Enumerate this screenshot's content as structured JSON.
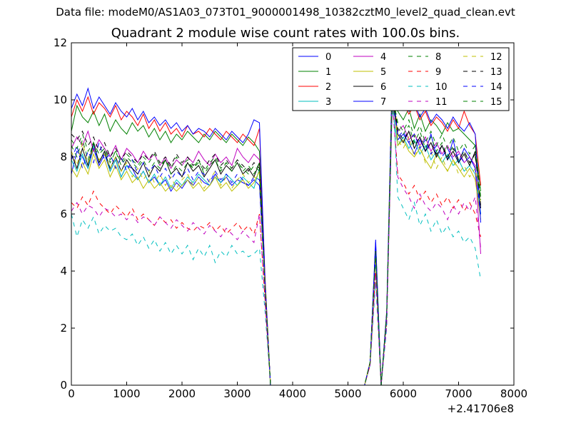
{
  "suptitle": "Data file: modeM0/AS1A03_073T01_9000001498_10382cztM0_level2_quad_clean.evt",
  "chart_data": {
    "type": "line",
    "title": "Quadrant 2 module wise count rates with 100.0s bins.",
    "xlabel": "",
    "ylabel": "",
    "xlim": [
      0,
      8000
    ],
    "ylim": [
      0,
      12
    ],
    "x_offset_label": "+2.41706e8",
    "xticks": [
      0,
      1000,
      2000,
      3000,
      4000,
      5000,
      6000,
      7000,
      8000
    ],
    "yticks": [
      0,
      2,
      4,
      6,
      8,
      10,
      12
    ],
    "grid": false,
    "legend_position": "top-right",
    "legend_columns": 4,
    "x": [
      0,
      100,
      200,
      300,
      400,
      500,
      600,
      700,
      800,
      900,
      1000,
      1100,
      1200,
      1300,
      1400,
      1500,
      1600,
      1700,
      1800,
      1900,
      2000,
      2100,
      2200,
      2300,
      2400,
      2500,
      2600,
      2700,
      2800,
      2900,
      3000,
      3100,
      3200,
      3300,
      3400,
      3500,
      3600,
      5300,
      5400,
      5500,
      5600,
      5700,
      5800,
      5900,
      6000,
      6100,
      6200,
      6300,
      6400,
      6500,
      6600,
      6700,
      6800,
      6900,
      7000,
      7100,
      7200,
      7300,
      7400
    ],
    "series": [
      {
        "name": "0",
        "color": "#0000ff",
        "style": "solid",
        "values": [
          7.4,
          8.2,
          8.0,
          7.6,
          8.3,
          7.7,
          8.1,
          7.5,
          7.9,
          7.3,
          7.7,
          7.6,
          7.2,
          7.5,
          7.1,
          7.3,
          7.0,
          7.2,
          6.8,
          7.1,
          6.9,
          7.2,
          7.0,
          7.3,
          7.1,
          7.0,
          7.4,
          7.1,
          7.3,
          7.0,
          7.2,
          7.1,
          7.0,
          7.2,
          7.0,
          3.5,
          0.0,
          0.0,
          0.8,
          5.1,
          0.0,
          2.5,
          10.2,
          8.6,
          8.8,
          8.5,
          8.1,
          8.6,
          8.2,
          8.8,
          8.0,
          8.4,
          7.9,
          8.6,
          7.8,
          8.3,
          8.0,
          7.6,
          6.0
        ]
      },
      {
        "name": "1",
        "color": "#008000",
        "style": "solid",
        "values": [
          8.9,
          9.8,
          9.4,
          9.2,
          9.6,
          9.1,
          9.5,
          8.9,
          9.3,
          9.0,
          8.8,
          9.2,
          8.9,
          9.1,
          8.7,
          9.0,
          8.6,
          8.9,
          8.5,
          8.8,
          8.6,
          8.9,
          8.7,
          8.5,
          8.8,
          8.6,
          8.9,
          8.7,
          8.5,
          8.8,
          8.6,
          8.4,
          8.7,
          8.5,
          8.2,
          3.6,
          0.0,
          0.0,
          0.8,
          4.6,
          0.0,
          2.5,
          10.0,
          9.6,
          9.3,
          9.7,
          9.0,
          9.5,
          8.9,
          9.3,
          9.1,
          8.8,
          9.2,
          8.9,
          9.0,
          8.8,
          8.6,
          8.4,
          6.8
        ]
      },
      {
        "name": "2",
        "color": "#ff0000",
        "style": "solid",
        "values": [
          9.4,
          10.0,
          9.6,
          10.1,
          9.5,
          9.9,
          9.7,
          9.4,
          9.8,
          9.3,
          9.6,
          9.4,
          9.1,
          9.5,
          9.0,
          9.3,
          8.9,
          9.2,
          8.8,
          9.0,
          8.7,
          9.1,
          8.8,
          8.9,
          8.7,
          9.0,
          8.8,
          8.6,
          8.9,
          8.7,
          8.5,
          8.8,
          8.6,
          8.4,
          9.0,
          3.8,
          0.0,
          0.0,
          0.8,
          4.9,
          0.0,
          2.6,
          10.4,
          9.7,
          9.9,
          9.5,
          9.8,
          9.3,
          9.6,
          9.1,
          9.4,
          9.2,
          8.9,
          9.3,
          9.0,
          9.6,
          9.1,
          8.8,
          7.0
        ]
      },
      {
        "name": "3",
        "color": "#00bfbf",
        "style": "solid",
        "values": [
          7.9,
          7.5,
          8.1,
          7.6,
          8.4,
          7.8,
          8.2,
          7.5,
          7.9,
          7.3,
          7.7,
          7.4,
          7.2,
          7.5,
          7.1,
          7.4,
          7.0,
          7.3,
          6.9,
          7.2,
          7.0,
          7.3,
          7.1,
          7.4,
          7.2,
          7.0,
          7.3,
          7.1,
          7.4,
          7.2,
          7.0,
          7.3,
          7.1,
          6.9,
          7.6,
          3.4,
          0.0,
          0.0,
          0.8,
          4.4,
          0.0,
          2.4,
          9.7,
          8.4,
          8.7,
          8.3,
          8.6,
          8.1,
          8.4,
          7.9,
          8.2,
          7.8,
          8.1,
          7.7,
          7.9,
          7.5,
          7.7,
          7.4,
          6.0
        ]
      },
      {
        "name": "4",
        "color": "#bf00bf",
        "style": "solid",
        "values": [
          8.3,
          8.7,
          8.4,
          8.9,
          8.2,
          8.6,
          8.3,
          8.0,
          8.4,
          7.9,
          8.3,
          8.1,
          7.8,
          8.2,
          7.9,
          8.1,
          7.7,
          8.0,
          7.6,
          7.9,
          7.7,
          8.0,
          7.8,
          8.2,
          7.9,
          7.7,
          8.1,
          7.8,
          8.0,
          7.7,
          8.3,
          8.0,
          7.8,
          8.1,
          7.9,
          3.5,
          0.0,
          0.0,
          0.8,
          4.6,
          0.0,
          2.5,
          10.0,
          8.9,
          9.1,
          8.6,
          8.8,
          8.4,
          8.7,
          8.2,
          8.5,
          8.1,
          8.4,
          8.0,
          8.2,
          7.8,
          8.0,
          7.7,
          4.6
        ]
      },
      {
        "name": "5",
        "color": "#bfbf00",
        "style": "solid",
        "values": [
          7.6,
          7.3,
          7.8,
          7.4,
          8.1,
          7.6,
          7.9,
          7.3,
          7.7,
          7.2,
          7.5,
          7.1,
          7.3,
          6.9,
          7.2,
          6.9,
          7.1,
          6.8,
          7.0,
          6.8,
          7.0,
          7.2,
          6.9,
          7.1,
          6.8,
          7.0,
          7.3,
          6.9,
          7.1,
          6.8,
          7.0,
          7.2,
          6.9,
          7.1,
          7.5,
          3.4,
          0.0,
          0.0,
          0.8,
          4.5,
          0.0,
          2.4,
          10.8,
          8.4,
          8.6,
          8.2,
          8.0,
          8.3,
          7.9,
          7.6,
          8.1,
          7.8,
          7.5,
          7.9,
          7.6,
          7.3,
          7.6,
          7.2,
          5.8
        ]
      },
      {
        "name": "6",
        "color": "#000000",
        "style": "solid",
        "values": [
          8.1,
          7.6,
          8.3,
          7.7,
          8.5,
          7.8,
          8.2,
          7.6,
          8.0,
          7.5,
          7.9,
          7.6,
          7.4,
          7.8,
          7.3,
          7.7,
          7.5,
          7.9,
          7.4,
          7.6,
          7.3,
          7.8,
          7.5,
          7.7,
          7.3,
          7.6,
          7.9,
          7.4,
          7.7,
          7.5,
          7.8,
          7.4,
          7.6,
          7.3,
          7.8,
          3.5,
          0.0,
          0.0,
          0.8,
          4.7,
          0.0,
          2.5,
          10.1,
          8.8,
          8.5,
          8.9,
          8.3,
          8.7,
          8.2,
          8.5,
          8.0,
          8.4,
          7.9,
          8.2,
          7.8,
          8.1,
          7.7,
          8.2,
          6.2
        ]
      },
      {
        "name": "7",
        "color": "#0000ff",
        "style": "solid",
        "values": [
          9.7,
          10.2,
          9.8,
          10.4,
          9.7,
          10.1,
          9.8,
          9.5,
          9.9,
          9.6,
          9.4,
          9.7,
          9.3,
          9.6,
          9.2,
          9.4,
          9.1,
          9.3,
          9.0,
          9.2,
          8.9,
          9.1,
          8.8,
          9.0,
          8.9,
          8.7,
          9.0,
          8.8,
          8.6,
          8.9,
          8.7,
          8.5,
          8.8,
          9.3,
          9.2,
          3.7,
          0.0,
          0.0,
          0.8,
          5.0,
          0.0,
          2.6,
          11.0,
          9.8,
          10.0,
          9.6,
          9.9,
          9.4,
          9.7,
          9.2,
          9.5,
          9.3,
          9.0,
          9.4,
          9.1,
          8.9,
          9.2,
          8.8,
          5.7
        ]
      },
      {
        "name": "8",
        "color": "#008000",
        "style": "dashed",
        "values": [
          8.4,
          8.0,
          8.6,
          7.9,
          8.5,
          8.1,
          8.3,
          7.8,
          8.2,
          7.7,
          8.0,
          7.8,
          7.6,
          7.9,
          7.5,
          7.8,
          7.6,
          7.9,
          7.4,
          7.7,
          7.5,
          7.8,
          7.6,
          7.9,
          7.4,
          7.7,
          7.9,
          7.5,
          7.8,
          7.6,
          7.9,
          7.5,
          7.7,
          7.4,
          7.8,
          3.5,
          0.0,
          0.0,
          0.8,
          4.6,
          0.0,
          2.5,
          10.3,
          9.0,
          8.8,
          9.1,
          8.5,
          8.9,
          8.3,
          8.7,
          8.2,
          8.5,
          8.0,
          8.4,
          7.9,
          8.2,
          7.8,
          8.0,
          6.5
        ]
      },
      {
        "name": "9",
        "color": "#ff0000",
        "style": "dashed",
        "values": [
          6.4,
          6.2,
          6.6,
          6.3,
          6.8,
          6.4,
          6.2,
          6.0,
          6.3,
          6.1,
          5.9,
          6.2,
          5.8,
          6.0,
          5.8,
          5.6,
          5.9,
          5.7,
          5.8,
          5.5,
          5.7,
          5.5,
          5.4,
          5.6,
          5.5,
          5.7,
          5.4,
          5.6,
          5.3,
          5.5,
          5.7,
          5.4,
          5.6,
          5.3,
          6.0,
          3.0,
          0.0,
          0.0,
          0.7,
          4.0,
          0.0,
          2.2,
          10.2,
          7.4,
          7.1,
          6.7,
          7.0,
          6.5,
          6.8,
          6.4,
          6.7,
          6.3,
          6.6,
          6.2,
          6.5,
          6.1,
          6.4,
          6.0,
          5.2
        ]
      },
      {
        "name": "10",
        "color": "#00bfbf",
        "style": "dashed",
        "values": [
          6.0,
          5.2,
          5.8,
          5.5,
          5.9,
          5.3,
          5.6,
          5.4,
          5.5,
          5.2,
          5.1,
          5.3,
          4.9,
          5.2,
          4.8,
          5.1,
          4.7,
          5.0,
          4.6,
          4.9,
          4.6,
          4.9,
          4.4,
          4.8,
          4.5,
          4.9,
          4.3,
          4.7,
          4.5,
          4.9,
          4.6,
          4.7,
          4.5,
          4.6,
          4.8,
          2.6,
          0.0,
          0.0,
          0.7,
          3.6,
          0.0,
          2.0,
          10.8,
          6.6,
          6.2,
          5.8,
          6.4,
          5.6,
          6.0,
          5.4,
          5.8,
          5.3,
          5.6,
          5.2,
          5.4,
          5.0,
          5.2,
          4.8,
          3.7
        ]
      },
      {
        "name": "11",
        "color": "#bf00bf",
        "style": "dashed",
        "values": [
          6.1,
          6.4,
          6.0,
          6.3,
          6.2,
          5.9,
          6.2,
          6.1,
          5.9,
          6.0,
          5.8,
          6.0,
          5.7,
          5.9,
          5.8,
          5.6,
          5.9,
          5.7,
          5.5,
          5.8,
          5.6,
          5.4,
          5.7,
          5.5,
          5.3,
          5.6,
          5.4,
          5.2,
          5.5,
          5.3,
          5.1,
          5.4,
          5.2,
          5.0,
          6.0,
          2.9,
          0.0,
          0.0,
          0.7,
          3.9,
          0.0,
          2.1,
          10.0,
          7.3,
          6.9,
          6.6,
          6.2,
          6.7,
          6.3,
          6.1,
          6.4,
          6.2,
          5.8,
          6.3,
          6.0,
          6.4,
          6.1,
          6.6,
          4.8
        ]
      },
      {
        "name": "12",
        "color": "#bfbf00",
        "style": "dashed",
        "values": [
          8.2,
          7.7,
          8.5,
          7.8,
          8.3,
          7.9,
          8.1,
          7.6,
          8.0,
          7.5,
          7.8,
          7.3,
          7.6,
          7.2,
          7.5,
          7.1,
          7.4,
          7.0,
          7.3,
          6.9,
          7.2,
          7.4,
          7.0,
          7.3,
          6.9,
          7.2,
          7.5,
          7.0,
          7.3,
          6.9,
          7.2,
          7.4,
          7.1,
          7.3,
          7.2,
          3.4,
          0.0,
          0.0,
          0.8,
          4.5,
          0.0,
          2.4,
          11.3,
          8.6,
          8.3,
          8.7,
          8.0,
          8.4,
          7.8,
          8.2,
          7.6,
          8.0,
          7.5,
          7.9,
          7.4,
          7.7,
          7.3,
          7.6,
          6.3
        ]
      },
      {
        "name": "13",
        "color": "#000000",
        "style": "dashed",
        "values": [
          8.8,
          8.6,
          8.9,
          8.4,
          8.7,
          8.2,
          8.5,
          8.0,
          8.3,
          7.9,
          8.2,
          8.0,
          7.8,
          8.1,
          7.9,
          8.2,
          7.8,
          8.0,
          7.7,
          8.1,
          7.8,
          8.0,
          7.7,
          7.9,
          7.6,
          7.9,
          8.1,
          7.7,
          7.9,
          7.6,
          7.9,
          7.7,
          7.5,
          7.8,
          7.6,
          3.5,
          0.0,
          0.0,
          0.8,
          4.7,
          0.0,
          2.5,
          10.5,
          8.9,
          8.6,
          8.9,
          8.4,
          8.7,
          8.2,
          8.5,
          8.1,
          8.4,
          8.0,
          8.3,
          7.9,
          8.2,
          7.8,
          8.1,
          6.3
        ]
      },
      {
        "name": "14",
        "color": "#0000ff",
        "style": "dashed",
        "values": [
          7.9,
          8.4,
          7.6,
          8.2,
          7.8,
          8.5,
          7.9,
          8.1,
          7.6,
          8.0,
          7.5,
          7.9,
          7.4,
          7.8,
          7.5,
          7.7,
          7.3,
          7.6,
          7.2,
          7.5,
          7.3,
          7.6,
          7.2,
          7.5,
          7.4,
          7.1,
          7.5,
          7.2,
          7.4,
          7.1,
          7.4,
          7.2,
          7.0,
          7.3,
          7.2,
          3.4,
          0.0,
          0.0,
          0.8,
          4.6,
          0.0,
          2.4,
          10.6,
          8.7,
          8.9,
          8.5,
          8.8,
          8.3,
          8.6,
          8.1,
          8.4,
          8.0,
          8.3,
          7.9,
          8.1,
          7.8,
          8.0,
          7.6,
          5.9
        ]
      },
      {
        "name": "15",
        "color": "#008000",
        "style": "dashed",
        "values": [
          8.6,
          8.3,
          8.8,
          8.2,
          8.5,
          8.1,
          8.3,
          7.9,
          8.2,
          7.8,
          8.1,
          7.9,
          7.7,
          8.0,
          7.8,
          8.1,
          7.7,
          7.9,
          7.6,
          8.0,
          7.7,
          7.9,
          7.6,
          7.8,
          7.5,
          7.8,
          8.0,
          7.6,
          7.8,
          7.5,
          7.8,
          7.6,
          7.4,
          7.7,
          7.5,
          3.5,
          0.0,
          0.0,
          0.8,
          4.7,
          0.0,
          2.5,
          10.2,
          9.2,
          8.9,
          9.3,
          8.7,
          9.1,
          8.5,
          8.9,
          8.4,
          8.8,
          8.3,
          8.7,
          8.2,
          8.5,
          8.1,
          8.4,
          6.6
        ]
      }
    ]
  }
}
